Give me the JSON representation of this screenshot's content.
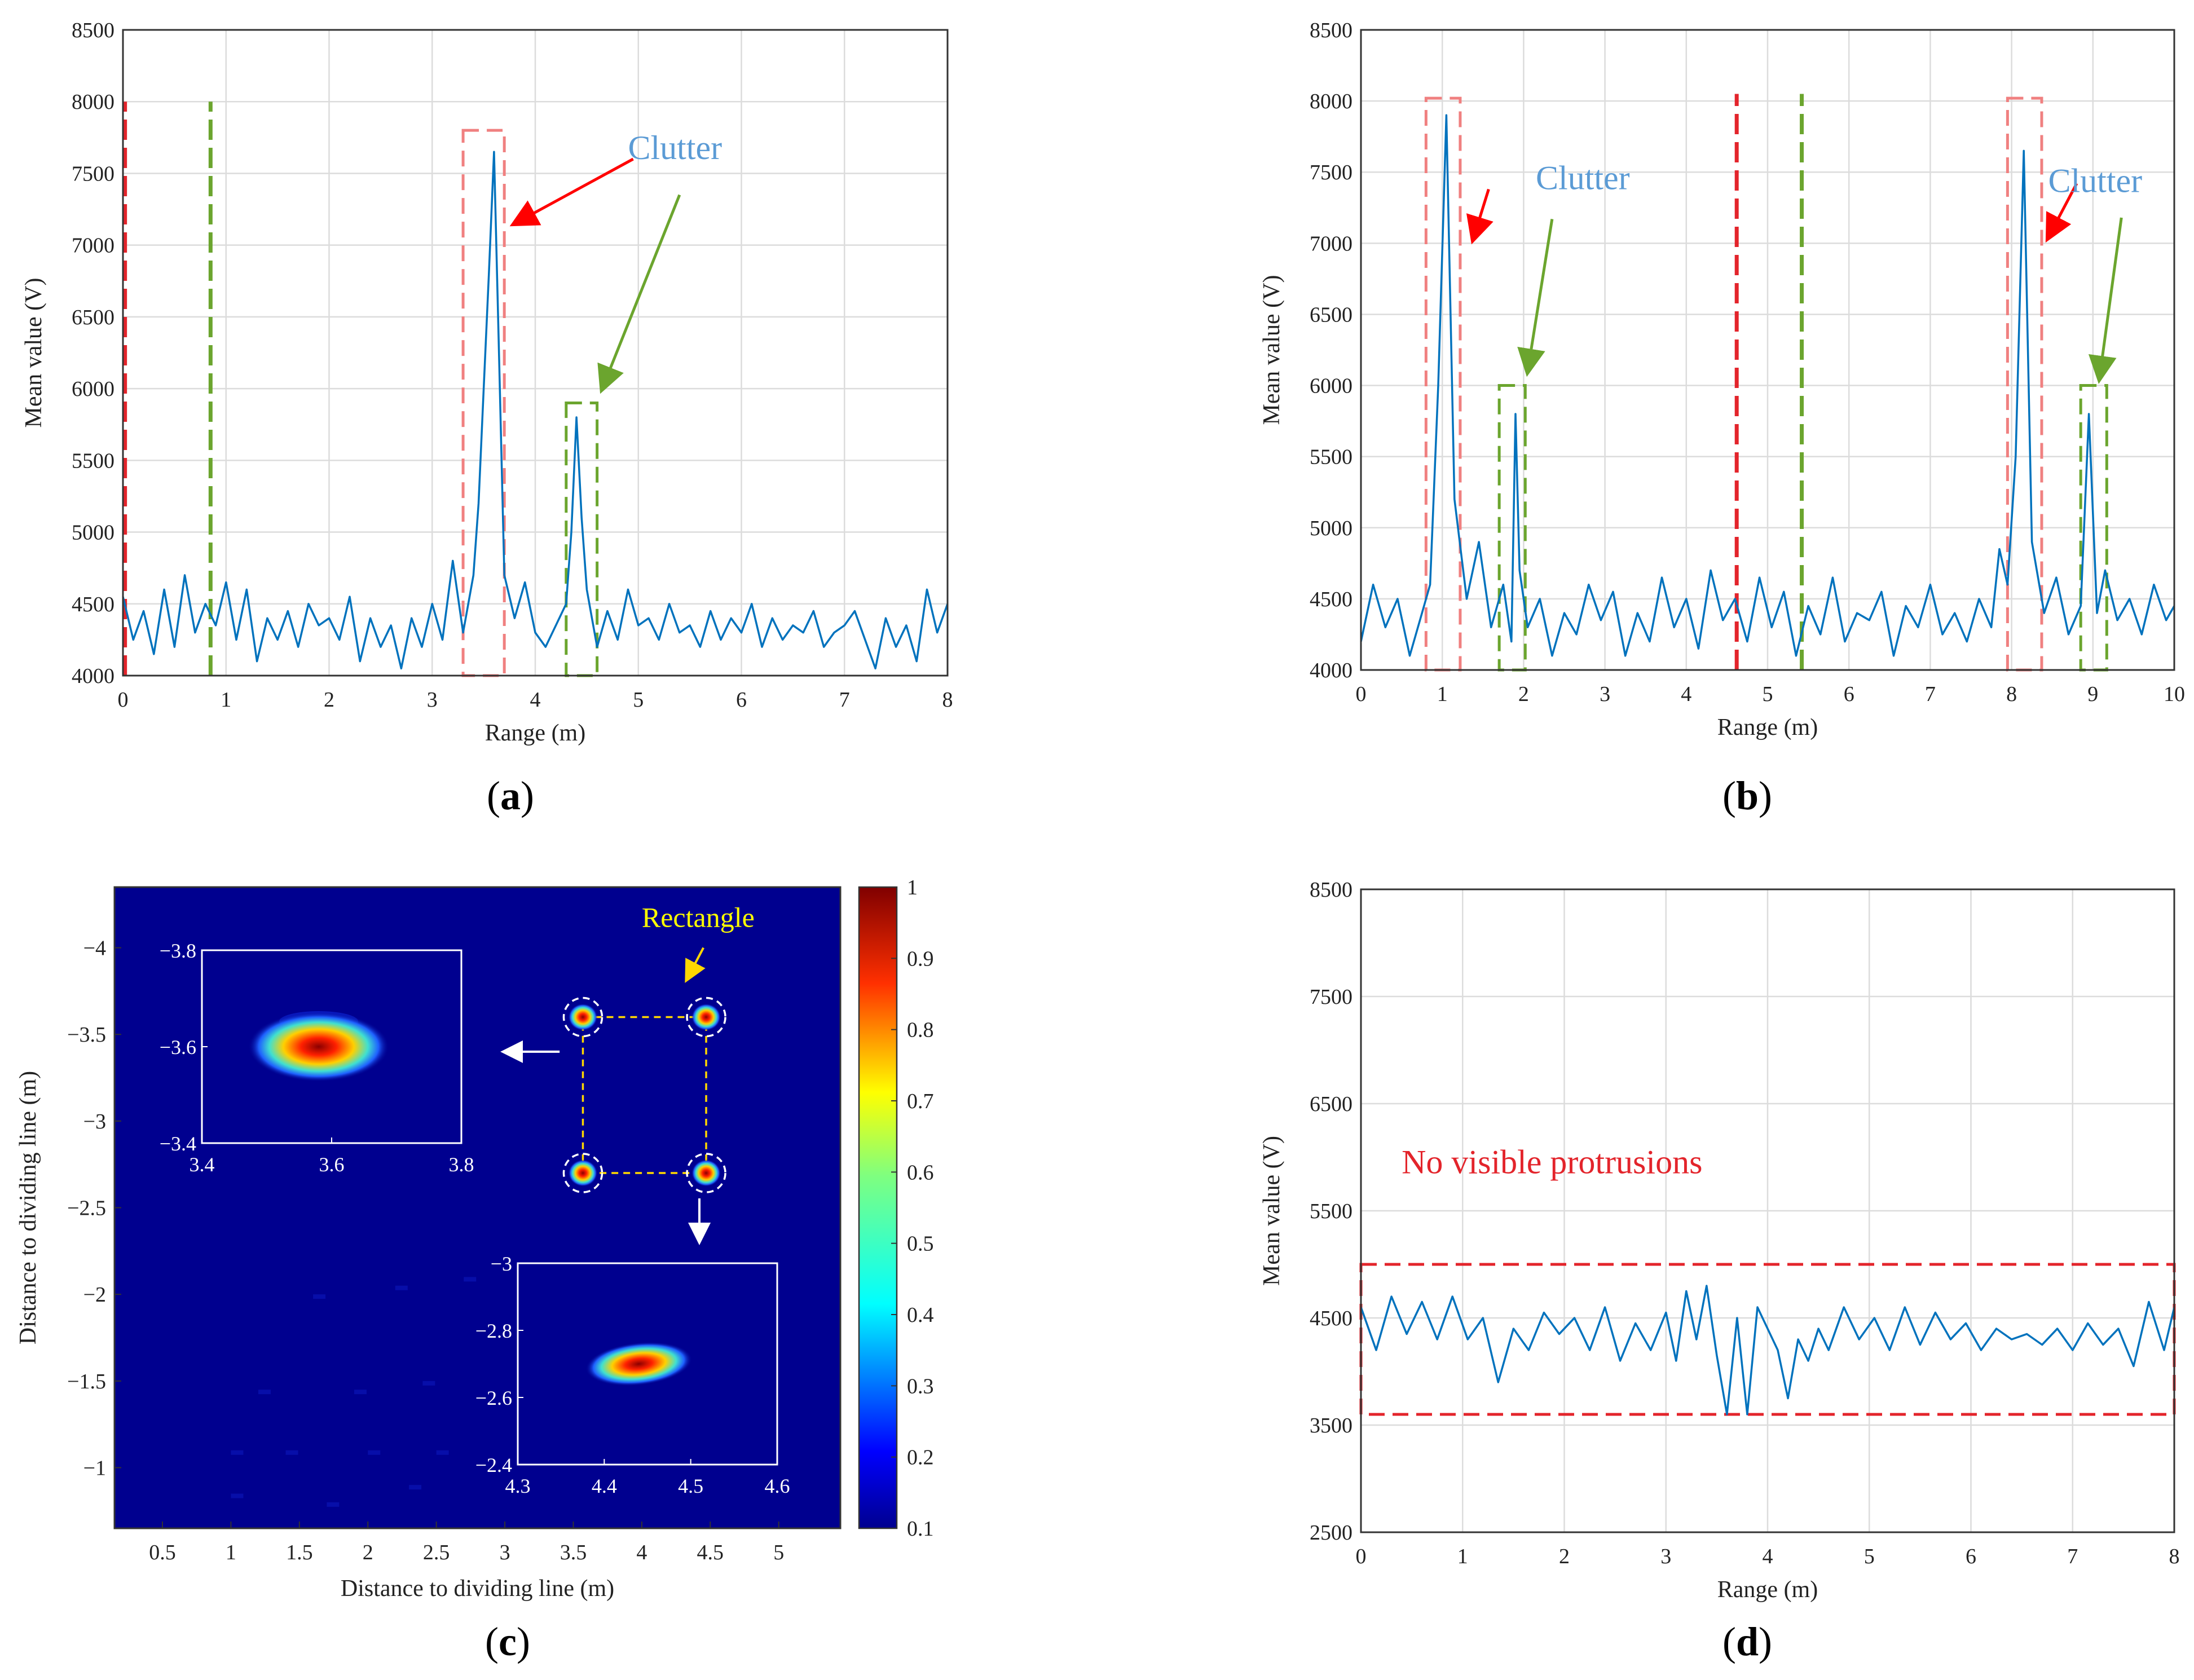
{
  "chart_data": [
    {
      "type": "line",
      "panel_label": "a",
      "xlabel": "Range (m)",
      "ylabel": "Mean value (V)",
      "xlim": [
        0,
        8
      ],
      "ylim": [
        4000,
        8500
      ],
      "xticks": [
        "0",
        "1",
        "2",
        "3",
        "4",
        "5",
        "6",
        "7",
        "8"
      ],
      "yticks": [
        "4000",
        "4500",
        "5000",
        "5500",
        "6000",
        "6500",
        "7000",
        "7500",
        "8000",
        "8500"
      ],
      "grid": true,
      "series": [
        {
          "color": "#0072BD",
          "x": [
            0,
            0.1,
            0.2,
            0.3,
            0.4,
            0.5,
            0.6,
            0.7,
            0.8,
            0.9,
            1.0,
            1.1,
            1.2,
            1.3,
            1.4,
            1.5,
            1.6,
            1.7,
            1.8,
            1.9,
            2.0,
            2.1,
            2.2,
            2.3,
            2.4,
            2.5,
            2.6,
            2.7,
            2.8,
            2.9,
            3.0,
            3.1,
            3.2,
            3.3,
            3.4,
            3.45,
            3.5,
            3.55,
            3.6,
            3.65,
            3.7,
            3.8,
            3.9,
            4.0,
            4.1,
            4.2,
            4.3,
            4.35,
            4.4,
            4.45,
            4.5,
            4.55,
            4.6,
            4.7,
            4.8,
            4.9,
            5.0,
            5.1,
            5.2,
            5.3,
            5.4,
            5.5,
            5.6,
            5.7,
            5.8,
            5.9,
            6.0,
            6.1,
            6.2,
            6.3,
            6.4,
            6.5,
            6.6,
            6.7,
            6.8,
            6.9,
            7.0,
            7.1,
            7.2,
            7.3,
            7.4,
            7.5,
            7.6,
            7.7,
            7.8,
            7.9,
            8.0
          ],
          "y": [
            4550,
            4250,
            4450,
            4150,
            4600,
            4200,
            4700,
            4300,
            4500,
            4350,
            4650,
            4250,
            4600,
            4100,
            4400,
            4250,
            4450,
            4200,
            4500,
            4350,
            4400,
            4250,
            4550,
            4100,
            4400,
            4200,
            4350,
            4050,
            4400,
            4200,
            4500,
            4250,
            4800,
            4300,
            4700,
            5200,
            6000,
            6800,
            7650,
            6200,
            4700,
            4400,
            4650,
            4300,
            4200,
            4350,
            4500,
            5000,
            5800,
            5100,
            4600,
            4400,
            4200,
            4450,
            4250,
            4600,
            4350,
            4400,
            4250,
            4500,
            4300,
            4350,
            4200,
            4450,
            4250,
            4400,
            4300,
            4500,
            4200,
            4400,
            4250,
            4350,
            4300,
            4450,
            4200,
            4300,
            4350,
            4450,
            4250,
            4050,
            4400,
            4200,
            4350,
            4100,
            4600,
            4300,
            4500
          ]
        }
      ],
      "overlay_lines": [
        {
          "x": 0.02,
          "color": "#E3242B",
          "y_range": [
            4000,
            8000
          ]
        },
        {
          "x": 0.85,
          "color": "#6BA52E",
          "y_range": [
            4000,
            8000
          ]
        }
      ],
      "boxes": [
        {
          "color": "#F08080",
          "x_range": [
            3.3,
            3.7
          ],
          "y_range": [
            4000,
            7800
          ]
        },
        {
          "color": "#6BA52E",
          "x_range": [
            4.3,
            4.6
          ],
          "y_range": [
            4000,
            5900
          ]
        }
      ],
      "annotations": [
        {
          "text": "Clutter",
          "at": [
            4.9,
            7600
          ],
          "color": "#5B9BD5"
        }
      ],
      "arrows": [
        {
          "from": [
            4.95,
            7600
          ],
          "to": [
            3.8,
            7150
          ],
          "color": "#FF0000"
        },
        {
          "from": [
            5.4,
            7350
          ],
          "to": [
            4.65,
            6000
          ],
          "color": "#6BA52E"
        }
      ]
    },
    {
      "type": "line",
      "panel_label": "b",
      "xlabel": "Range (m)",
      "ylabel": "Mean value (V)",
      "xlim": [
        0,
        10
      ],
      "ylim": [
        4000,
        8500
      ],
      "xticks": [
        "0",
        "1",
        "2",
        "3",
        "4",
        "5",
        "6",
        "7",
        "8",
        "9",
        "10"
      ],
      "yticks": [
        "4000",
        "4500",
        "5000",
        "5500",
        "6000",
        "6500",
        "7000",
        "7500",
        "8000",
        "8500"
      ],
      "grid": true,
      "series": [
        {
          "color": "#0072BD",
          "x": [
            0,
            0.15,
            0.3,
            0.45,
            0.6,
            0.75,
            0.85,
            0.95,
            1.05,
            1.15,
            1.3,
            1.45,
            1.6,
            1.75,
            1.85,
            1.9,
            1.95,
            2.05,
            2.2,
            2.35,
            2.5,
            2.65,
            2.8,
            2.95,
            3.1,
            3.25,
            3.4,
            3.55,
            3.7,
            3.85,
            4.0,
            4.15,
            4.3,
            4.45,
            4.6,
            4.75,
            4.9,
            5.05,
            5.2,
            5.35,
            5.5,
            5.65,
            5.8,
            5.95,
            6.1,
            6.25,
            6.4,
            6.55,
            6.7,
            6.85,
            7.0,
            7.15,
            7.3,
            7.45,
            7.6,
            7.75,
            7.85,
            7.95,
            8.05,
            8.15,
            8.25,
            8.4,
            8.55,
            8.7,
            8.85,
            8.95,
            9.05,
            9.15,
            9.3,
            9.45,
            9.6,
            9.75,
            9.9,
            10.0
          ],
          "y": [
            4200,
            4600,
            4300,
            4500,
            4100,
            4400,
            4600,
            6000,
            7900,
            5200,
            4500,
            4900,
            4300,
            4600,
            4200,
            5800,
            4700,
            4300,
            4500,
            4100,
            4400,
            4250,
            4600,
            4350,
            4550,
            4100,
            4400,
            4200,
            4650,
            4300,
            4500,
            4150,
            4700,
            4350,
            4500,
            4200,
            4650,
            4300,
            4550,
            4100,
            4450,
            4250,
            4650,
            4200,
            4400,
            4350,
            4550,
            4100,
            4450,
            4300,
            4600,
            4250,
            4400,
            4200,
            4500,
            4300,
            4850,
            4600,
            5500,
            7650,
            4900,
            4400,
            4650,
            4250,
            4450,
            5800,
            4400,
            4700,
            4350,
            4500,
            4250,
            4600,
            4350,
            4450
          ]
        }
      ],
      "overlay_lines": [
        {
          "x": 4.62,
          "color": "#E3242B",
          "y_range": [
            4000,
            8050
          ]
        },
        {
          "x": 5.42,
          "color": "#6BA52E",
          "y_range": [
            4000,
            8050
          ]
        }
      ],
      "boxes": [
        {
          "color": "#F08080",
          "x_range": [
            0.8,
            1.22
          ],
          "y_range": [
            4000,
            8020
          ]
        },
        {
          "color": "#6BA52E",
          "x_range": [
            1.7,
            2.02
          ],
          "y_range": [
            4000,
            6000
          ]
        },
        {
          "color": "#F08080",
          "x_range": [
            7.95,
            8.37
          ],
          "y_range": [
            4000,
            8020
          ]
        },
        {
          "color": "#6BA52E",
          "x_range": [
            8.85,
            9.17
          ],
          "y_range": [
            4000,
            6000
          ]
        }
      ],
      "annotations": [
        {
          "text": "Clutter",
          "at": [
            2.15,
            7380
          ],
          "color": "#5B9BD5"
        },
        {
          "text": "Clutter",
          "at": [
            8.45,
            7360
          ],
          "color": "#5B9BD5"
        }
      ],
      "arrows": [
        {
          "from": [
            1.57,
            7380
          ],
          "to": [
            1.38,
            7030
          ],
          "color": "#FF0000"
        },
        {
          "from": [
            2.35,
            7170
          ],
          "to": [
            2.05,
            6100
          ],
          "color": "#6BA52E"
        },
        {
          "from": [
            8.8,
            7420
          ],
          "to": [
            8.45,
            7040
          ],
          "color": "#FF0000"
        },
        {
          "from": [
            9.35,
            7180
          ],
          "to": [
            9.08,
            6050
          ],
          "color": "#6BA52E"
        }
      ]
    },
    {
      "type": "heatmap",
      "panel_label": "c",
      "xlabel": "Distance to dividing line (m)",
      "ylabel": "Distance to dividing line (m)",
      "xlim": [
        0.15,
        5.45
      ],
      "ylim": [
        -4.35,
        -0.65
      ],
      "xticks": [
        "0.5",
        "1",
        "1.5",
        "2",
        "2.5",
        "3",
        "3.5",
        "4",
        "4.5",
        "5"
      ],
      "yticks": [
        "−4",
        "−3.5",
        "−3",
        "−2.5",
        "−2",
        "−1.5",
        "−1"
      ],
      "colorbar": {
        "min": 0.1,
        "max": 1,
        "ticks": [
          "0.1",
          "0.2",
          "0.3",
          "0.4",
          "0.5",
          "0.6",
          "0.7",
          "0.8",
          "0.9",
          "1"
        ]
      },
      "targets": [
        {
          "x": 3.57,
          "y": -3.6
        },
        {
          "x": 4.47,
          "y": -3.6
        },
        {
          "x": 3.57,
          "y": -2.7
        },
        {
          "x": 4.47,
          "y": -2.7
        }
      ],
      "annotations": [
        {
          "text": "Rectangle",
          "color": "#FFFF00"
        }
      ],
      "insets": [
        {
          "xlim": [
            3.4,
            3.8
          ],
          "ylim": [
            -3.8,
            -3.4
          ],
          "xticks": [
            "3.4",
            "3.6",
            "3.8"
          ],
          "yticks": [
            "−3.8",
            "−3.6",
            "−3.4"
          ],
          "peak": [
            3.58,
            -3.6
          ]
        },
        {
          "xlim": [
            4.3,
            4.6
          ],
          "ylim": [
            -3,
            -2.4
          ],
          "xticks": [
            "4.3",
            "4.4",
            "4.5",
            "4.6"
          ],
          "yticks": [
            "−3",
            "−2.8",
            "−2.6",
            "−2.4"
          ],
          "peak": [
            4.44,
            -2.7
          ]
        }
      ]
    },
    {
      "type": "line",
      "panel_label": "d",
      "xlabel": "Range (m)",
      "ylabel": "Mean value (V)",
      "xlim": [
        0,
        8
      ],
      "ylim": [
        2500,
        8500
      ],
      "xticks": [
        "0",
        "1",
        "2",
        "3",
        "4",
        "5",
        "6",
        "7",
        "8"
      ],
      "yticks": [
        "2500",
        "3500",
        "4500",
        "5500",
        "6500",
        "7500",
        "8500"
      ],
      "grid": true,
      "series": [
        {
          "color": "#0072BD",
          "x": [
            0,
            0.15,
            0.3,
            0.45,
            0.6,
            0.75,
            0.9,
            1.05,
            1.2,
            1.35,
            1.5,
            1.65,
            1.8,
            1.95,
            2.1,
            2.25,
            2.4,
            2.55,
            2.7,
            2.85,
            3.0,
            3.1,
            3.2,
            3.3,
            3.4,
            3.5,
            3.6,
            3.7,
            3.8,
            3.9,
            4.0,
            4.1,
            4.2,
            4.3,
            4.4,
            4.5,
            4.6,
            4.75,
            4.9,
            5.05,
            5.2,
            5.35,
            5.5,
            5.65,
            5.8,
            5.95,
            6.1,
            6.25,
            6.4,
            6.55,
            6.7,
            6.85,
            7.0,
            7.15,
            7.3,
            7.45,
            7.6,
            7.75,
            7.9,
            8.0
          ],
          "y": [
            4600,
            4200,
            4700,
            4350,
            4650,
            4300,
            4700,
            4300,
            4500,
            3900,
            4400,
            4200,
            4550,
            4350,
            4500,
            4200,
            4600,
            4100,
            4450,
            4200,
            4550,
            4100,
            4750,
            4300,
            4800,
            4150,
            3600,
            4500,
            3600,
            4600,
            4400,
            4200,
            3750,
            4300,
            4100,
            4400,
            4200,
            4600,
            4300,
            4500,
            4200,
            4600,
            4250,
            4550,
            4300,
            4450,
            4200,
            4400,
            4300,
            4350,
            4250,
            4400,
            4200,
            4450,
            4250,
            4400,
            4050,
            4650,
            4200,
            4600
          ]
        }
      ],
      "boxes": [
        {
          "color": "#E3242B",
          "x_range": [
            0,
            8
          ],
          "y_range": [
            3600,
            5000
          ]
        }
      ],
      "annotations": [
        {
          "text": "No visible protrusions",
          "at": [
            0.4,
            5850
          ],
          "color": "#E3242B"
        }
      ]
    }
  ]
}
